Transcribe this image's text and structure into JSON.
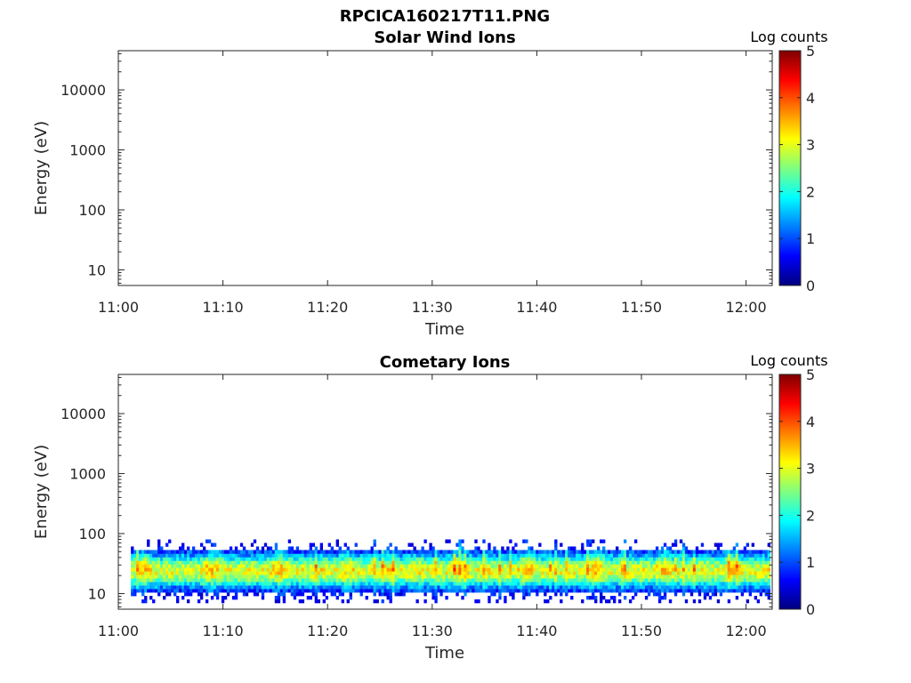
{
  "figure_title": "RPCICA160217T11.PNG",
  "colormap": [
    "#00007f",
    "#0000ff",
    "#007fff",
    "#00ffff",
    "#7fff7f",
    "#ffff00",
    "#ff7f00",
    "#ff0000",
    "#7f0000"
  ],
  "chart_data": [
    {
      "type": "heatmap",
      "title": "Solar Wind Ions",
      "xlabel": "Time",
      "ylabel": "Energy (eV)",
      "x_tick_labels": [
        "11:00",
        "11:10",
        "11:20",
        "11:30",
        "11:40",
        "11:50",
        "12:00"
      ],
      "x_tick_minutes": [
        0,
        10,
        20,
        30,
        40,
        50,
        60
      ],
      "xlim_minutes": [
        0,
        62.5
      ],
      "y_scale": "log",
      "y_tick_labels": [
        "10",
        "100",
        "1000",
        "10000"
      ],
      "y_tick_values": [
        10,
        100,
        1000,
        10000
      ],
      "ylim": [
        5.5,
        45000
      ],
      "colorbar": {
        "label": "Log counts",
        "range": [
          0,
          5
        ],
        "ticks": [
          "0",
          "1",
          "2",
          "3",
          "4",
          "5"
        ]
      },
      "data_present": false
    },
    {
      "type": "heatmap",
      "title": "Cometary Ions",
      "xlabel": "Time",
      "ylabel": "Energy (eV)",
      "x_tick_labels": [
        "11:00",
        "11:10",
        "11:20",
        "11:30",
        "11:40",
        "11:50",
        "12:00"
      ],
      "x_tick_minutes": [
        0,
        10,
        20,
        30,
        40,
        50,
        60
      ],
      "xlim_minutes": [
        0,
        62.5
      ],
      "y_scale": "log",
      "y_tick_labels": [
        "10",
        "100",
        "1000",
        "10000"
      ],
      "y_tick_values": [
        10,
        100,
        1000,
        10000
      ],
      "ylim": [
        5.5,
        45000
      ],
      "colorbar": {
        "label": "Log counts",
        "range": [
          0,
          5
        ],
        "ticks": [
          "0",
          "1",
          "2",
          "3",
          "4",
          "5"
        ]
      },
      "data_present": true,
      "data_time_range_minutes": [
        1.2,
        62.3
      ],
      "band_energy_range_eV": [
        7,
        80
      ],
      "band_peak_energy_eV": 24,
      "band_peak_log_counts": 3
    }
  ]
}
